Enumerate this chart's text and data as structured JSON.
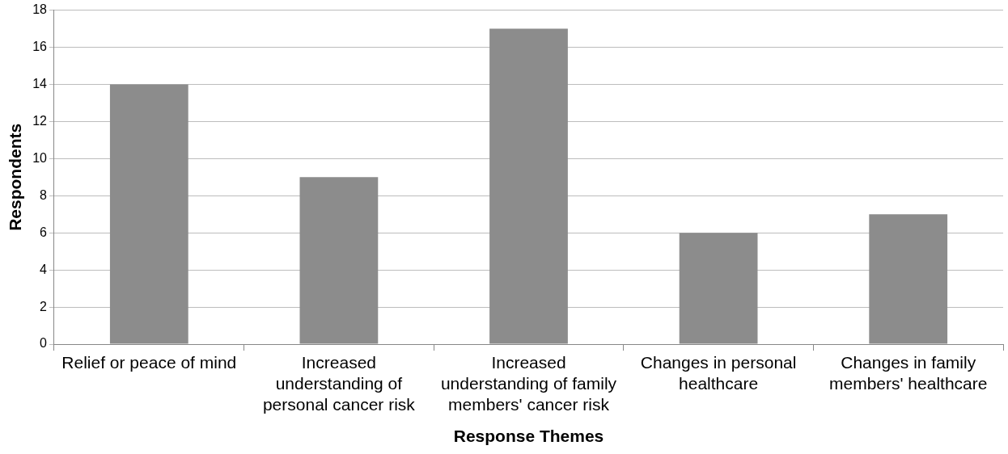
{
  "chart_data": {
    "type": "bar",
    "xlabel": "Response Themes",
    "ylabel": "Respondents",
    "categories": [
      "Relief or peace of mind",
      "Increased understanding of personal cancer risk",
      "Increased understanding of family members' cancer risk",
      "Changes in personal healthcare",
      "Changes in family members' healthcare"
    ],
    "values": [
      14,
      9,
      17,
      6,
      7
    ],
    "color": "#8c8c8c",
    "ylim": [
      0,
      18
    ],
    "yticks": [
      0,
      2,
      4,
      6,
      8,
      10,
      12,
      14,
      16,
      18
    ],
    "grid": "y",
    "legend": false
  }
}
